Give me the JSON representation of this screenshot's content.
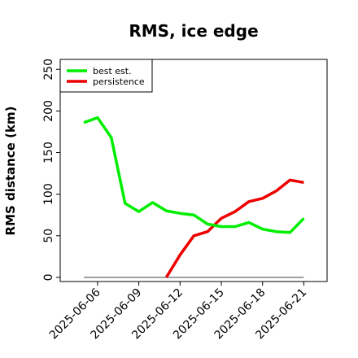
{
  "chart_data": {
    "type": "line",
    "title": "RMS, ice edge",
    "xlabel": "",
    "ylabel": "RMS distance (km)",
    "x": [
      "2025-06-05",
      "2025-06-06",
      "2025-06-07",
      "2025-06-08",
      "2025-06-09",
      "2025-06-10",
      "2025-06-11",
      "2025-06-12",
      "2025-06-13",
      "2025-06-14",
      "2025-06-15",
      "2025-06-16",
      "2025-06-17",
      "2025-06-18",
      "2025-06-19",
      "2025-06-20",
      "2025-06-21"
    ],
    "x_tick_labels": [
      "2025-06-06",
      "2025-06-09",
      "2025-06-12",
      "2025-06-15",
      "2025-06-18",
      "2025-06-21"
    ],
    "x_tick_index": [
      1,
      4,
      7,
      10,
      13,
      16
    ],
    "ylim": [
      -5,
      262
    ],
    "y_ticks": [
      0,
      50,
      100,
      150,
      200,
      250
    ],
    "grid": false,
    "legend_position": "top-left",
    "series": [
      {
        "name": "best est.",
        "color": "#00ee00",
        "values": [
          186,
          192,
          168,
          89,
          79,
          90,
          80,
          77,
          75,
          64,
          61,
          61,
          66,
          58,
          55,
          54,
          71
        ]
      },
      {
        "name": "persistence",
        "color": "#ee0000",
        "values": [
          null,
          null,
          null,
          null,
          null,
          null,
          0,
          27,
          50,
          55,
          71,
          79,
          91,
          95,
          104,
          117,
          114
        ]
      }
    ],
    "baseline": {
      "value": 0,
      "color": "#808080"
    }
  }
}
